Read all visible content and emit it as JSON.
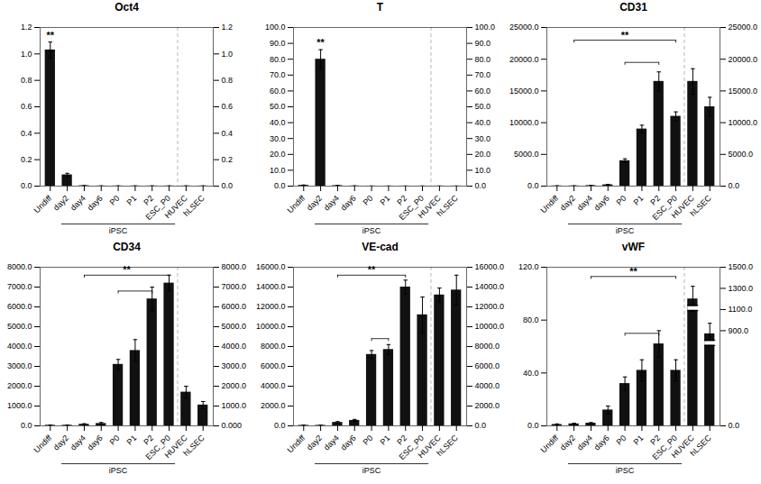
{
  "chart_data": [
    {
      "type": "bar",
      "title": "Oct4",
      "categories": [
        "Undiff",
        "day2",
        "day4",
        "day6",
        "P0",
        "P1",
        "P2",
        "ESC_P0",
        "HUVEC",
        "hLSEC"
      ],
      "values": [
        1.03,
        0.085,
        0.003,
        0.001,
        0.001,
        0.001,
        0.001,
        0.001,
        0.001,
        0.001
      ],
      "errors": [
        0.06,
        0.012,
        0.001,
        0.001,
        0.001,
        0.001,
        0.001,
        0.001,
        0.001,
        0.001
      ],
      "color": "#111111",
      "ylim": [
        0.0,
        1.2
      ],
      "yticks": [
        {
          "value": 0.0,
          "label": "0.0"
        },
        0.2,
        0.4,
        0.6,
        0.8,
        {
          "value": 1.0,
          "label": "1.0"
        },
        1.2
      ],
      "y2lim": [
        0.0,
        1.2
      ],
      "y2ticks": [
        {
          "value": 0.0,
          "label": "0.0"
        },
        0.2,
        0.4,
        0.6,
        0.8,
        {
          "value": 1.0,
          "label": "1.0"
        },
        1.2
      ],
      "annotations": [
        {
          "text": "**",
          "category": "Undiff"
        },
        {
          "text": "iPSC",
          "from": "day2",
          "to": "ESC_P0"
        }
      ],
      "brackets": [],
      "separator_after": "ESC_P0"
    },
    {
      "type": "bar",
      "title": "T",
      "categories": [
        "Undiff",
        "day2",
        "day4",
        "day6",
        "P0",
        "P1",
        "P2",
        "ESC_P0",
        "HUVEC",
        "hLSEC"
      ],
      "values": [
        0.5,
        80.0,
        0.3,
        0.1,
        0.05,
        0.05,
        0.05,
        0.05,
        0.05,
        0.05
      ],
      "errors": [
        0.2,
        6.0,
        0.15,
        0.05,
        0.02,
        0.02,
        0.02,
        0.02,
        0.02,
        0.02
      ],
      "color": "#111111",
      "ylim": [
        0.0,
        100.0
      ],
      "yticks": [
        {
          "value": 0.0,
          "label": "0.0"
        },
        {
          "value": 10.0,
          "label": "10.0"
        },
        {
          "value": 20.0,
          "label": "20.0"
        },
        {
          "value": 30.0,
          "label": "30.0"
        },
        {
          "value": 40.0,
          "label": "40.0"
        },
        {
          "value": 50.0,
          "label": "50.0"
        },
        {
          "value": 60.0,
          "label": "60.0"
        },
        {
          "value": 70.0,
          "label": "70.0"
        },
        {
          "value": 80.0,
          "label": "80.0"
        },
        {
          "value": 90.0,
          "label": "90.0"
        },
        {
          "value": 100.0,
          "label": "100.0"
        }
      ],
      "y2lim": [
        0.0,
        100.0
      ],
      "y2ticks": [
        {
          "value": 0.0,
          "label": "0.0"
        },
        {
          "value": 10.0,
          "label": "10.0"
        },
        {
          "value": 20.0,
          "label": "20.0"
        },
        {
          "value": 30.0,
          "label": "30.0"
        },
        {
          "value": 40.0,
          "label": "40.0"
        },
        {
          "value": 50.0,
          "label": "50.0"
        },
        {
          "value": 60.0,
          "label": "60.0"
        },
        {
          "value": 70.0,
          "label": "70.0"
        },
        {
          "value": 80.0,
          "label": "80.0"
        },
        {
          "value": 90.0,
          "label": "90.0"
        },
        {
          "value": 100.0,
          "label": "100.0"
        }
      ],
      "annotations": [
        {
          "text": "**",
          "category": "day2"
        },
        {
          "text": "iPSC",
          "from": "day2",
          "to": "ESC_P0"
        }
      ],
      "brackets": [],
      "separator_after": "ESC_P0"
    },
    {
      "type": "bar",
      "title": "CD31",
      "categories": [
        "Undiff",
        "day2",
        "day4",
        "day6",
        "P0",
        "P1",
        "P2",
        "ESC_P0",
        "HUVEC",
        "hLSEC"
      ],
      "values": [
        30,
        30,
        80,
        200,
        4000,
        9000,
        16500,
        11000,
        16500,
        12500
      ],
      "errors": [
        15,
        15,
        40,
        80,
        300,
        600,
        1500,
        700,
        2000,
        1500
      ],
      "color": "#111111",
      "ylim": [
        0.0,
        25000.0
      ],
      "yticks": [
        {
          "value": 0.0,
          "label": "0.0"
        },
        {
          "value": 5000.0,
          "label": "5000.0"
        },
        {
          "value": 10000.0,
          "label": "10000.0"
        },
        {
          "value": 15000.0,
          "label": "15000.0"
        },
        {
          "value": 20000.0,
          "label": "20000.0"
        },
        {
          "value": 25000.0,
          "label": "25000.0"
        }
      ],
      "y2lim": [
        0.0,
        25000.0
      ],
      "y2ticks": [
        {
          "value": 0.0,
          "label": "0.0"
        },
        {
          "value": 5000.0,
          "label": "5000.0"
        },
        {
          "value": 10000.0,
          "label": "10000.0"
        },
        {
          "value": 15000.0,
          "label": "15000.0"
        },
        {
          "value": 20000.0,
          "label": "20000.0"
        },
        {
          "value": 25000.0,
          "label": "25000.0"
        }
      ],
      "annotations": [
        {
          "text": "iPSC",
          "from": "day2",
          "to": "ESC_P0"
        }
      ],
      "brackets": [
        {
          "from": "day2",
          "to": "ESC_P0",
          "y": 23000,
          "label": "**"
        },
        {
          "from": "P0",
          "to": "P2",
          "y": 19500
        }
      ],
      "separator_after": "ESC_P0"
    },
    {
      "type": "bar",
      "title": "CD34",
      "categories": [
        "Undiff",
        "day2",
        "day4",
        "day6",
        "P0",
        "P1",
        "P2",
        "ESC_P0",
        "HUVEC",
        "hLSEC"
      ],
      "values": [
        30,
        30,
        80,
        120,
        3100,
        3800,
        6400,
        7200,
        1700,
        1050
      ],
      "errors": [
        15,
        15,
        30,
        50,
        250,
        550,
        600,
        400,
        300,
        180
      ],
      "color": "#111111",
      "ylim": [
        0.0,
        8000.0
      ],
      "yticks": [
        {
          "value": 0.0,
          "label": "0.0"
        },
        {
          "value": 1000.0,
          "label": "1000.0"
        },
        {
          "value": 2000.0,
          "label": "2000.0"
        },
        {
          "value": 3000.0,
          "label": "3000.0"
        },
        {
          "value": 4000.0,
          "label": "4000.0"
        },
        {
          "value": 5000.0,
          "label": "5000.0"
        },
        {
          "value": 6000.0,
          "label": "6000.0"
        },
        {
          "value": 7000.0,
          "label": "7000.0"
        },
        {
          "value": 8000.0,
          "label": "8000.0"
        }
      ],
      "y2lim": [
        0.0,
        8000.0
      ],
      "y2ticks": [
        {
          "value": 0.0,
          "label": "0.000"
        },
        {
          "value": 1000.0,
          "label": "1000.0"
        },
        {
          "value": 2000.0,
          "label": "2000.0"
        },
        {
          "value": 3000.0,
          "label": "3000.0"
        },
        {
          "value": 4000.0,
          "label": "4000.0"
        },
        {
          "value": 5000.0,
          "label": "5000.0"
        },
        {
          "value": 6000.0,
          "label": "6000.0"
        },
        {
          "value": 7000.0,
          "label": "7000.0"
        },
        {
          "value": 8000.0,
          "label": "8000.0"
        }
      ],
      "annotations": [
        {
          "text": "iPSC",
          "from": "day2",
          "to": "ESC_P0"
        }
      ],
      "brackets": [
        {
          "from": "day4",
          "to": "ESC_P0",
          "y": 7600,
          "label": "**"
        },
        {
          "from": "P0",
          "to": "P2",
          "y": 6800
        }
      ],
      "separator_after": "ESC_P0"
    },
    {
      "type": "bar",
      "title": "VE-cad",
      "categories": [
        "Undiff",
        "day2",
        "day4",
        "day6",
        "P0",
        "P1",
        "P2",
        "ESC_P0",
        "HUVEC",
        "hLSEC"
      ],
      "values": [
        50,
        50,
        350,
        550,
        7200,
        7700,
        14000,
        11200,
        13200,
        13700
      ],
      "errors": [
        20,
        20,
        80,
        100,
        400,
        500,
        700,
        1800,
        700,
        1500
      ],
      "color": "#111111",
      "ylim": [
        0.0,
        16000.0
      ],
      "yticks": [
        {
          "value": 0.0,
          "label": "0.0"
        },
        {
          "value": 2000.0,
          "label": "2000.0"
        },
        {
          "value": 4000.0,
          "label": "4000.0"
        },
        {
          "value": 6000.0,
          "label": "6000.0"
        },
        {
          "value": 8000.0,
          "label": "8000.0"
        },
        {
          "value": 10000.0,
          "label": "10000.0"
        },
        {
          "value": 12000.0,
          "label": "12000.0"
        },
        {
          "value": 14000.0,
          "label": "14000.0"
        },
        {
          "value": 16000.0,
          "label": "16000.0"
        }
      ],
      "y2lim": [
        0.0,
        16000.0
      ],
      "y2ticks": [
        {
          "value": 0.0,
          "label": "0.0"
        },
        {
          "value": 2000.0,
          "label": "2000.0"
        },
        {
          "value": 4000.0,
          "label": "4000.0"
        },
        {
          "value": 6000.0,
          "label": "6000.0"
        },
        {
          "value": 8000.0,
          "label": "8000.0"
        },
        {
          "value": 10000.0,
          "label": "10000.0"
        },
        {
          "value": 12000.0,
          "label": "12000.0"
        },
        {
          "value": 14000.0,
          "label": "14000.0"
        },
        {
          "value": 16000.0,
          "label": "16000.0"
        }
      ],
      "annotations": [
        {
          "text": "iPSC",
          "from": "day2",
          "to": "ESC_P0"
        }
      ],
      "brackets": [
        {
          "from": "day4",
          "to": "P2",
          "y": 15200,
          "label": "**"
        },
        {
          "from": "P0",
          "to": "P1",
          "y": 8800
        }
      ],
      "separator_after": "ESC_P0"
    },
    {
      "type": "bar",
      "title": "vWF",
      "categories": [
        "Undiff",
        "day2",
        "day4",
        "day6",
        "P0",
        "P1",
        "P2",
        "ESC_P0",
        "HUVEC",
        "hLSEC"
      ],
      "series": [
        {
          "values": [
            1.0,
            1.5,
            2.0,
            12.0,
            32.0,
            42.0,
            62.0,
            42.0,
            null,
            null
          ],
          "errors": [
            0.5,
            0.5,
            0.5,
            3.0,
            5.0,
            8.0,
            10.0,
            8.0,
            null,
            null
          ]
        },
        {
          "axis": "y2",
          "values": [
            null,
            null,
            null,
            null,
            null,
            null,
            null,
            null,
            1200.0,
            870.0
          ],
          "errors": [
            null,
            null,
            null,
            null,
            null,
            null,
            null,
            null,
            120.0,
            100.0
          ]
        }
      ],
      "color": "#111111",
      "ylim": [
        0.0,
        120.0
      ],
      "yticks": [
        {
          "value": 0.0,
          "label": "0.0"
        },
        {
          "value": 40.0,
          "label": "40.0"
        },
        {
          "value": 80.0,
          "label": "80.0"
        },
        {
          "value": 120.0,
          "label": "120.0"
        }
      ],
      "y2lim": [
        0.0,
        1500.0
      ],
      "y2ticks": [
        {
          "value": 0.0,
          "label": "0.0"
        },
        {
          "value": 900.0,
          "label": "900.0"
        },
        {
          "value": 1100.0,
          "label": "1100.0"
        },
        {
          "value": 1300.0,
          "label": "1300.0"
        },
        {
          "value": 1500.0,
          "label": "1500.0"
        }
      ],
      "annotations": [
        {
          "text": "iPSC",
          "from": "day2",
          "to": "ESC_P0"
        }
      ],
      "brackets": [
        {
          "from": "day4",
          "to": "ESC_P0",
          "y": 113,
          "label": "**"
        },
        {
          "from": "P0",
          "to": "P2",
          "y": 70
        }
      ],
      "separator_after": "ESC_P0"
    }
  ]
}
